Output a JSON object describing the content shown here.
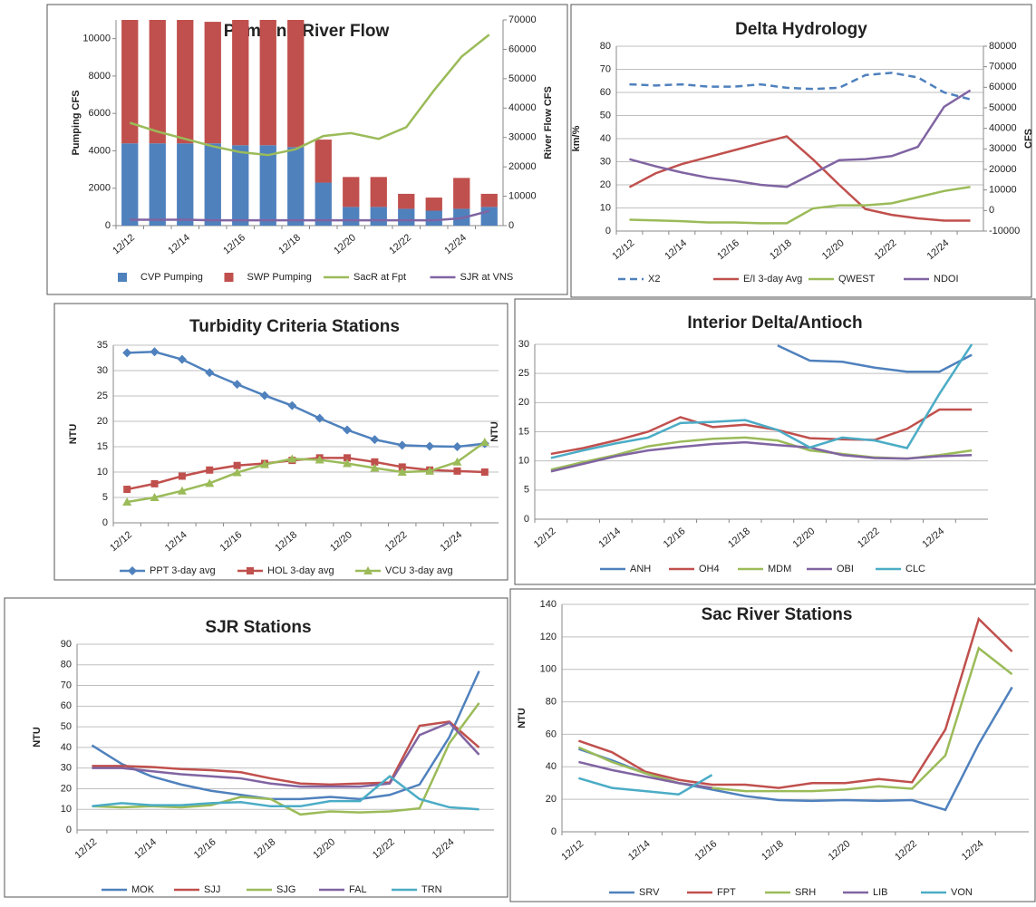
{
  "chart_data": [
    {
      "type": "bar",
      "title": "Pumping/River Flow",
      "ylabel": "Pumping CFS",
      "y2label": "River Flow CFS",
      "stacked": true,
      "grid": false,
      "categories": [
        "12/12",
        null,
        "12/14",
        null,
        "12/16",
        null,
        "12/18",
        null,
        "12/20",
        null,
        "12/22",
        null,
        "12/24",
        null
      ],
      "ylim": [
        0,
        11000
      ],
      "yticks": [
        0,
        2000,
        4000,
        6000,
        8000,
        10000
      ],
      "y2lim": [
        0,
        70000
      ],
      "y2ticks": [
        0,
        10000,
        20000,
        30000,
        40000,
        50000,
        60000,
        70000
      ],
      "series": [
        {
          "name": "CVP Pumping",
          "type": "bar",
          "color": "#4f81bd",
          "values": [
            4400,
            4400,
            4400,
            4400,
            4300,
            4300,
            4200,
            2300,
            1000,
            1000,
            900,
            800,
            900,
            1000
          ]
        },
        {
          "name": "SWP Pumping",
          "type": "bar",
          "color": "#c0504d",
          "values": [
            6600,
            6600,
            6600,
            6500,
            6700,
            6700,
            6800,
            2300,
            1600,
            1600,
            800,
            700,
            1650,
            700
          ]
        },
        {
          "name": "SacR at Fpt",
          "type": "line",
          "axis": "y2",
          "color": "#9bbb59",
          "values": [
            35000,
            32000,
            29500,
            27000,
            25000,
            24000,
            26000,
            30500,
            31500,
            29500,
            33500,
            46000,
            57500,
            65000
          ]
        },
        {
          "name": "SJR at VNS",
          "type": "line",
          "axis": "y2",
          "color": "#8064a2",
          "values": [
            2000,
            2000,
            2000,
            1800,
            1800,
            1800,
            1800,
            1800,
            1800,
            1800,
            1800,
            1800,
            2500,
            5000
          ]
        }
      ]
    },
    {
      "type": "line",
      "title": "Delta Hydrology",
      "ylabel": "km/%",
      "y2label": "CFS",
      "grid": true,
      "categories": [
        "12/12",
        null,
        "12/14",
        null,
        "12/16",
        null,
        "12/18",
        null,
        "12/20",
        null,
        "12/22",
        null,
        "12/24",
        null
      ],
      "ylim": [
        0,
        80
      ],
      "yticks": [
        0,
        10,
        20,
        30,
        40,
        50,
        60,
        70,
        80
      ],
      "y2lim": [
        -10000,
        80000
      ],
      "y2ticks": [
        -10000,
        0,
        10000,
        20000,
        30000,
        40000,
        50000,
        60000,
        70000,
        80000
      ],
      "series": [
        {
          "name": "X2",
          "dash": true,
          "color": "#4f81bd",
          "values": [
            63.5,
            63,
            63.5,
            62.5,
            62.5,
            63.5,
            62,
            61.5,
            62,
            67.5,
            68.5,
            66.5,
            60,
            57
          ]
        },
        {
          "name": "E/I 3-day Avg",
          "color": "#c0504d",
          "values": [
            19,
            25,
            29,
            32,
            35,
            38,
            41,
            31,
            20,
            9.5,
            7,
            5.5,
            4.5,
            4.5
          ]
        },
        {
          "name": "QWEST",
          "axis": "y2",
          "color": "#9bbb59",
          "values": [
            -4500,
            -4800,
            -5200,
            -5800,
            -5800,
            -6200,
            -6200,
            1000,
            2500,
            2500,
            3500,
            6500,
            9500,
            11500
          ]
        },
        {
          "name": "NDOI",
          "axis": "y2",
          "color": "#8064a2",
          "values": [
            25000,
            21500,
            18500,
            16000,
            14500,
            12500,
            11500,
            18000,
            24500,
            25000,
            26500,
            31000,
            50500,
            58500
          ]
        }
      ]
    },
    {
      "type": "line",
      "title": "Turbidity Criteria Stations",
      "ylabel": "NTU",
      "grid": true,
      "categories": [
        "12/12",
        null,
        "12/14",
        null,
        "12/16",
        null,
        "12/18",
        null,
        "12/20",
        null,
        "12/22",
        null,
        "12/24",
        null
      ],
      "ylim": [
        0,
        35
      ],
      "yticks": [
        0,
        5,
        10,
        15,
        20,
        25,
        30,
        35
      ],
      "series": [
        {
          "name": "PPT 3-day avg",
          "marker": "diamond",
          "color": "#4f81bd",
          "values": [
            33.5,
            33.7,
            32.2,
            29.6,
            27.3,
            25.1,
            23.1,
            20.6,
            18.3,
            16.4,
            15.3,
            15.1,
            15.0,
            15.6
          ]
        },
        {
          "name": "HOL 3-day avg",
          "marker": "square",
          "color": "#c0504d",
          "values": [
            6.6,
            7.7,
            9.2,
            10.4,
            11.3,
            11.7,
            12.3,
            12.8,
            12.8,
            12.0,
            11.0,
            10.4,
            10.2,
            10.0
          ]
        },
        {
          "name": "VCU 3-day avg",
          "marker": "triangle",
          "color": "#9bbb59",
          "values": [
            4.1,
            5.0,
            6.3,
            7.8,
            9.9,
            11.5,
            12.6,
            12.4,
            11.7,
            10.8,
            10.0,
            10.2,
            12.0,
            15.9
          ]
        }
      ]
    },
    {
      "type": "line",
      "title": "Interior Delta/Antioch",
      "ylabel": "NTU",
      "grid": true,
      "categories": [
        "12/12",
        null,
        "12/14",
        null,
        "12/16",
        null,
        "12/18",
        null,
        "12/20",
        null,
        "12/22",
        null,
        "12/24",
        null
      ],
      "ylim": [
        0,
        30
      ],
      "yticks": [
        0,
        5,
        10,
        15,
        20,
        25,
        30
      ],
      "series": [
        {
          "name": "ANH",
          "color": "#4f81bd",
          "values": [
            null,
            null,
            null,
            null,
            null,
            null,
            null,
            29.8,
            27.2,
            27.0,
            26.0,
            25.3,
            25.3,
            28.2
          ]
        },
        {
          "name": "OH4",
          "color": "#c0504d",
          "values": [
            11.2,
            12.2,
            13.5,
            15.0,
            17.5,
            15.8,
            16.2,
            15.3,
            13.9,
            13.7,
            13.6,
            15.5,
            18.8,
            18.8
          ]
        },
        {
          "name": "MDM",
          "color": "#9bbb59",
          "values": [
            8.5,
            9.8,
            11.0,
            12.5,
            13.3,
            13.8,
            14.0,
            13.5,
            11.8,
            11.2,
            10.6,
            10.4,
            11.0,
            11.8
          ]
        },
        {
          "name": "OBI",
          "color": "#8064a2",
          "values": [
            8.2,
            9.5,
            10.8,
            11.8,
            12.4,
            12.9,
            13.2,
            12.7,
            12.3,
            11.0,
            10.5,
            10.4,
            10.8,
            11.0
          ]
        },
        {
          "name": "CLC",
          "color": "#4bacc6",
          "values": [
            10.5,
            11.8,
            13.0,
            14.0,
            16.5,
            16.7,
            17.0,
            15.3,
            12.3,
            14.0,
            13.5,
            12.2,
            21.5,
            30
          ]
        }
      ]
    },
    {
      "type": "line",
      "title": "SJR Stations",
      "ylabel": "NTU",
      "grid": true,
      "categories": [
        "12/12",
        null,
        "12/14",
        null,
        "12/16",
        null,
        "12/18",
        null,
        "12/20",
        null,
        "12/22",
        null,
        "12/24",
        null
      ],
      "ylim": [
        0,
        90
      ],
      "yticks": [
        0,
        10,
        20,
        30,
        40,
        50,
        60,
        70,
        80,
        90
      ],
      "series": [
        {
          "name": "MOK",
          "color": "#4f81bd",
          "values": [
            41,
            32,
            26,
            22,
            19,
            17,
            15,
            15,
            16,
            15,
            17,
            22,
            45,
            77
          ]
        },
        {
          "name": "SJJ",
          "color": "#c0504d",
          "values": [
            31,
            31,
            30.5,
            29.5,
            29,
            28,
            25,
            22.5,
            22,
            22.5,
            23,
            50.5,
            52.5,
            40
          ]
        },
        {
          "name": "SJG",
          "color": "#9bbb59",
          "values": [
            11.5,
            11,
            11.5,
            11,
            12,
            16,
            15,
            7.5,
            9,
            8.5,
            9,
            10.5,
            42,
            61.5
          ]
        },
        {
          "name": "FAL",
          "color": "#8064a2",
          "values": [
            30,
            30,
            28.5,
            27,
            26,
            25,
            22.5,
            21,
            21,
            21,
            22.5,
            46,
            52,
            36.5
          ]
        },
        {
          "name": "TRN",
          "color": "#4bacc6",
          "values": [
            11.5,
            13,
            12,
            12,
            13,
            13.5,
            11.5,
            11.5,
            14,
            14,
            26,
            15,
            11,
            10
          ]
        }
      ]
    },
    {
      "type": "line",
      "title": "Sac River Stations",
      "ylabel": "NTU",
      "grid": true,
      "categories": [
        "12/12",
        null,
        "12/14",
        null,
        "12/16",
        null,
        "12/18",
        null,
        "12/20",
        null,
        "12/22",
        null,
        "12/24",
        null
      ],
      "ylim": [
        0,
        140
      ],
      "yticks": [
        0,
        20,
        40,
        60,
        80,
        100,
        120,
        140
      ],
      "series": [
        {
          "name": "SRV",
          "color": "#4f81bd",
          "values": [
            51,
            44,
            36,
            30,
            26,
            22,
            19.5,
            19,
            19.5,
            19,
            19.5,
            13.5,
            54,
            89
          ]
        },
        {
          "name": "FPT",
          "color": "#c0504d",
          "values": [
            56,
            49,
            37,
            32,
            29,
            29,
            27,
            30,
            30,
            32.5,
            30.5,
            63,
            131,
            111
          ]
        },
        {
          "name": "SRH",
          "color": "#9bbb59",
          "values": [
            52,
            43,
            36,
            30,
            27,
            25,
            25,
            25,
            26,
            28,
            26.5,
            47,
            113,
            97
          ]
        },
        {
          "name": "LIB",
          "color": "#8064a2",
          "values": [
            43,
            38,
            34,
            30,
            27,
            null,
            null,
            null,
            null,
            null,
            null,
            null,
            null,
            null
          ]
        },
        {
          "name": "VON",
          "color": "#4bacc6",
          "values": [
            33,
            27,
            25,
            23,
            35,
            null,
            null,
            null,
            null,
            null,
            null,
            null,
            null,
            null
          ]
        }
      ]
    }
  ]
}
